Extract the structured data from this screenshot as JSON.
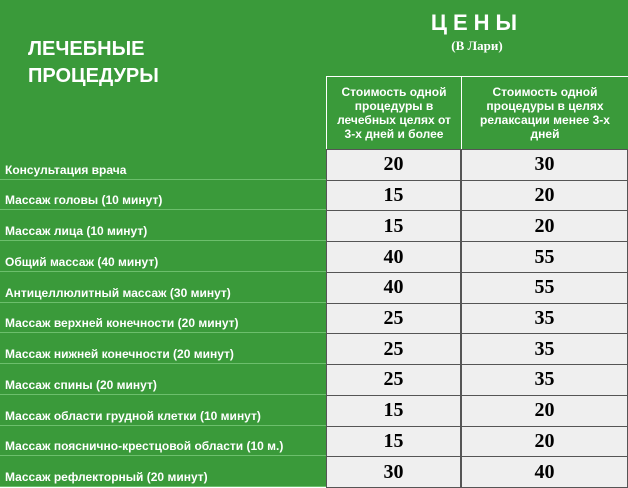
{
  "header": {
    "title": "ЛЕЧЕБНЫЕ ПРОЦЕДУРЫ",
    "prices_title": "ЦЕНЫ",
    "currency": "(В Лари)",
    "columns": [
      "Стоимость одной процедуры в лечебных целях от 3-х дней и более",
      "Стоимость одной процедуры в целях релаксации менее 3-х дней"
    ]
  },
  "table": {
    "rows": [
      [
        "Консультация врача",
        20,
        30
      ],
      [
        "Массаж головы (10 минут)",
        15,
        20
      ],
      [
        "Массаж лица (10 минут)",
        15,
        20
      ],
      [
        "Общий массаж (40 минут)",
        40,
        55
      ],
      [
        "Антицеллюлитный массаж (30 минут)",
        40,
        55
      ],
      [
        "Массаж верхней конечности (20 минут)",
        25,
        35
      ],
      [
        "Массаж нижней конечности (20 минут)",
        25,
        35
      ],
      [
        "Массаж спины (20 минут)",
        25,
        35
      ],
      [
        "Массаж области грудной клетки (10 минут)",
        15,
        20
      ],
      [
        "Массаж пояснично-крестцовой  области (10 м.)",
        15,
        20
      ],
      [
        "Массаж рефлекторный (20 минут)",
        30,
        40
      ]
    ]
  }
}
